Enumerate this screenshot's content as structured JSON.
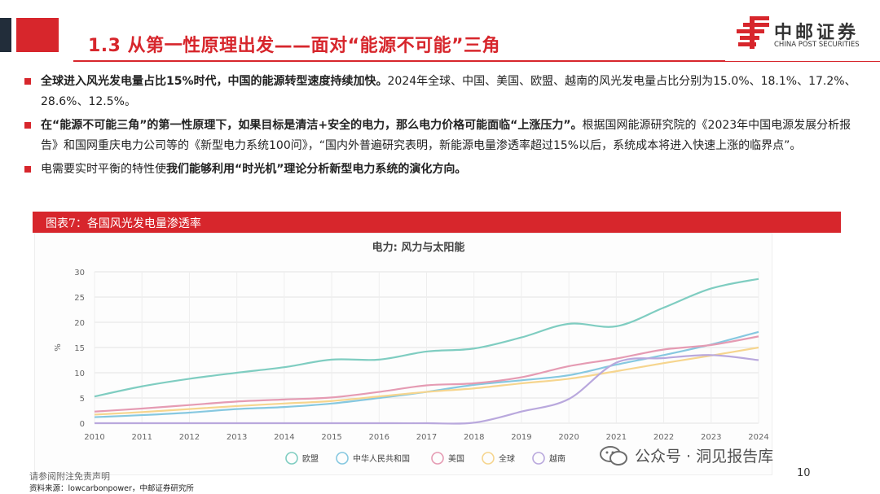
{
  "slide": {
    "title": "1.3 从第一性原理出发——面对“能源不可能”三角",
    "logo_name": "中邮证券",
    "logo_sub": "CHINA POST SECURITIES",
    "page_number": "10",
    "disclaimer": "请参阅附注免责声明",
    "source": "资料来源：lowcarbonpower，中邮证券研究所",
    "watermark": "公众号 · 洞见报告库"
  },
  "bullets": [
    {
      "bold": "全球进入风光发电量占比15%时代，中国的能源转型速度持续加快。",
      "text": "2024年全球、中国、美国、欧盟、越南的风光发电量占比分别为15.0%、18.1%、17.2%、28.6%、12.5%。",
      "bold2": ""
    },
    {
      "bold": "在“能源不可能三角”的第一性原理下，如果目标是清洁+安全的电力，那么电力价格可能面临“上涨压力”。",
      "text": "根据国网能源研究院的《2023年中国电源发展分析报告》和国网重庆电力公司等的《新型电力系统100问》，“国内外普遍研究表明，新能源电量渗透率超过15%以后，系统成本将进入快速上涨的临界点”。",
      "bold2": ""
    },
    {
      "bold": "",
      "text": "电需要实时平衡的特性使",
      "bold2": "我们能够利用“时光机”理论分析新型电力系统的演化方向。"
    }
  ],
  "figure": {
    "label": "图表7：各国风光发电量渗透率"
  },
  "colors": {
    "accent": "#d7262c",
    "dark": "#222d3a"
  },
  "chart_data": {
    "type": "line",
    "title": "电力: 风力与太阳能",
    "ylabel": "%",
    "xlabel": "",
    "x": [
      2010,
      2011,
      2012,
      2013,
      2014,
      2015,
      2016,
      2017,
      2018,
      2019,
      2020,
      2021,
      2022,
      2023,
      2024
    ],
    "ylim": [
      0,
      30
    ],
    "yticks": [
      0,
      5,
      10,
      15,
      20,
      25,
      30
    ],
    "grid": true,
    "legend": "bottom",
    "series": [
      {
        "name": "欧盟",
        "color": "#7fcdc1",
        "values": [
          5.3,
          7.3,
          8.8,
          10.0,
          11.1,
          12.6,
          12.6,
          14.2,
          14.8,
          17.0,
          19.7,
          19.2,
          22.9,
          26.7,
          28.6
        ]
      },
      {
        "name": "中华人民共和国",
        "color": "#86c8e0",
        "values": [
          1.2,
          1.6,
          2.1,
          2.8,
          3.2,
          3.9,
          5.0,
          6.2,
          7.6,
          8.5,
          9.5,
          11.6,
          13.5,
          15.6,
          18.1
        ]
      },
      {
        "name": "美国",
        "color": "#e59bb3",
        "values": [
          2.3,
          2.9,
          3.6,
          4.3,
          4.7,
          5.1,
          6.2,
          7.5,
          7.9,
          9.1,
          11.3,
          12.8,
          14.6,
          15.5,
          17.2
        ]
      },
      {
        "name": "全球",
        "color": "#f6d58e",
        "values": [
          1.7,
          2.2,
          2.8,
          3.4,
          3.9,
          4.4,
          5.3,
          6.2,
          6.9,
          7.9,
          8.8,
          10.3,
          11.9,
          13.4,
          15.0
        ]
      },
      {
        "name": "越南",
        "color": "#b9a8dd",
        "values": [
          0.0,
          0.0,
          0.0,
          0.0,
          0.0,
          0.0,
          0.0,
          0.0,
          0.1,
          2.3,
          4.8,
          12.0,
          12.9,
          13.5,
          12.5
        ]
      }
    ]
  }
}
